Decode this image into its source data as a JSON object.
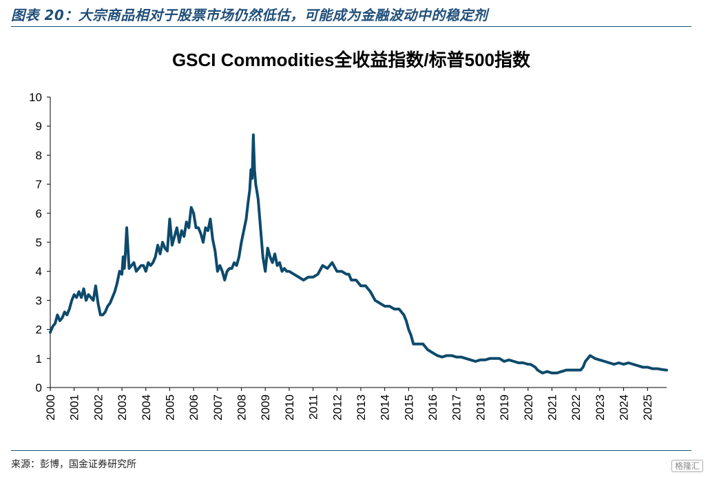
{
  "figure": {
    "title": "图表 20：大宗商品相对于股票市场仍然低估，可能成为金融波动中的稳定剂",
    "source": "来源：彭博，国金证券研究所",
    "watermark": "格隆汇"
  },
  "colors": {
    "line": "#0d4a6b",
    "accent": "#1f4e79"
  },
  "chart_data": {
    "type": "line",
    "title": "GSCI Commodities全收益指数/标普500指数",
    "xlabel": "",
    "ylabel": "",
    "xlim": [
      2000.0,
      2025.8
    ],
    "ylim": [
      0,
      10
    ],
    "yticks": [
      0,
      1,
      2,
      3,
      4,
      5,
      6,
      7,
      8,
      9,
      10
    ],
    "xticks": [
      "2000",
      "2001",
      "2002",
      "2003",
      "2004",
      "2005",
      "2006",
      "2007",
      "2008",
      "2009",
      "2010",
      "2011",
      "2012",
      "2013",
      "2014",
      "2015",
      "2016",
      "2017",
      "2018",
      "2019",
      "2020",
      "2021",
      "2022",
      "2023",
      "2024",
      "2025"
    ],
    "grid": false,
    "legend": "none",
    "series": [
      {
        "x": [
          2000.0,
          2000.1,
          2000.2,
          2000.3,
          2000.4,
          2000.5,
          2000.6,
          2000.7,
          2000.8,
          2000.9,
          2001.0,
          2001.1,
          2001.2,
          2001.3,
          2001.4,
          2001.5,
          2001.6,
          2001.7,
          2001.8,
          2001.9,
          2002.0,
          2002.1,
          2002.2,
          2002.3,
          2002.4,
          2002.5,
          2002.6,
          2002.7,
          2002.8,
          2002.9,
          2003.0,
          2003.05,
          2003.1,
          2003.15,
          2003.2,
          2003.3,
          2003.4,
          2003.5,
          2003.6,
          2003.7,
          2003.8,
          2003.9,
          2004.0,
          2004.1,
          2004.2,
          2004.3,
          2004.4,
          2004.5,
          2004.6,
          2004.7,
          2004.8,
          2004.9,
          2005.0,
          2005.1,
          2005.2,
          2005.3,
          2005.4,
          2005.5,
          2005.6,
          2005.7,
          2005.8,
          2005.9,
          2006.0,
          2006.1,
          2006.2,
          2006.3,
          2006.4,
          2006.5,
          2006.6,
          2006.7,
          2006.8,
          2006.9,
          2007.0,
          2007.1,
          2007.2,
          2007.3,
          2007.4,
          2007.5,
          2007.6,
          2007.7,
          2007.8,
          2007.9,
          2008.0,
          2008.1,
          2008.2,
          2008.3,
          2008.35,
          2008.4,
          2008.45,
          2008.5,
          2008.55,
          2008.6,
          2008.7,
          2008.8,
          2008.9,
          2009.0,
          2009.1,
          2009.2,
          2009.3,
          2009.4,
          2009.5,
          2009.6,
          2009.7,
          2009.8,
          2009.9,
          2010.0,
          2010.2,
          2010.4,
          2010.6,
          2010.8,
          2011.0,
          2011.2,
          2011.4,
          2011.6,
          2011.8,
          2012.0,
          2012.2,
          2012.4,
          2012.5,
          2012.6,
          2012.8,
          2013.0,
          2013.2,
          2013.4,
          2013.6,
          2013.8,
          2014.0,
          2014.2,
          2014.4,
          2014.5,
          2014.6,
          2014.7,
          2014.8,
          2014.9,
          2015.0,
          2015.1,
          2015.2,
          2015.4,
          2015.6,
          2015.8,
          2016.0,
          2016.2,
          2016.4,
          2016.6,
          2016.8,
          2017.0,
          2017.2,
          2017.4,
          2017.6,
          2017.8,
          2018.0,
          2018.2,
          2018.4,
          2018.6,
          2018.8,
          2019.0,
          2019.2,
          2019.4,
          2019.6,
          2019.8,
          2020.0,
          2020.1,
          2020.2,
          2020.3,
          2020.4,
          2020.6,
          2020.8,
          2021.0,
          2021.2,
          2021.4,
          2021.6,
          2021.8,
          2022.0,
          2022.2,
          2022.3,
          2022.4,
          2022.5,
          2022.6,
          2022.8,
          2023.0,
          2023.2,
          2023.4,
          2023.6,
          2023.8,
          2024.0,
          2024.2,
          2024.4,
          2024.6,
          2024.8,
          2025.0,
          2025.2,
          2025.4,
          2025.6,
          2025.8
        ],
        "y": [
          1.9,
          2.1,
          2.2,
          2.5,
          2.3,
          2.4,
          2.6,
          2.5,
          2.7,
          3.0,
          3.2,
          3.1,
          3.3,
          3.1,
          3.4,
          3.0,
          3.2,
          3.1,
          3.0,
          3.5,
          2.9,
          2.5,
          2.5,
          2.6,
          2.8,
          2.9,
          3.1,
          3.3,
          3.6,
          4.0,
          3.9,
          4.5,
          4.1,
          4.7,
          5.5,
          4.1,
          4.2,
          4.3,
          4.0,
          4.1,
          4.2,
          4.2,
          4.0,
          4.3,
          4.2,
          4.3,
          4.5,
          4.9,
          4.6,
          5.0,
          4.8,
          4.7,
          5.8,
          4.9,
          5.2,
          5.5,
          5.0,
          5.4,
          5.2,
          5.7,
          5.5,
          6.2,
          6.0,
          5.5,
          5.5,
          5.3,
          5.0,
          5.5,
          5.4,
          5.8,
          5.1,
          4.7,
          4.0,
          4.2,
          4.0,
          3.7,
          4.0,
          4.1,
          4.1,
          4.3,
          4.2,
          4.5,
          5.0,
          5.4,
          5.8,
          6.5,
          6.8,
          7.5,
          7.2,
          8.7,
          7.5,
          7.0,
          6.5,
          5.5,
          4.5,
          4.0,
          4.8,
          4.5,
          4.3,
          4.6,
          4.2,
          4.3,
          4.0,
          4.1,
          4.0,
          4.0,
          3.9,
          3.8,
          3.7,
          3.8,
          3.8,
          3.9,
          4.2,
          4.1,
          4.3,
          4.0,
          4.0,
          3.9,
          3.9,
          3.7,
          3.7,
          3.5,
          3.5,
          3.3,
          3.0,
          2.9,
          2.8,
          2.8,
          2.7,
          2.7,
          2.7,
          2.6,
          2.5,
          2.3,
          2.0,
          1.8,
          1.5,
          1.5,
          1.5,
          1.3,
          1.2,
          1.1,
          1.05,
          1.1,
          1.1,
          1.05,
          1.05,
          1.0,
          0.95,
          0.9,
          0.95,
          0.95,
          1.0,
          1.0,
          1.0,
          0.9,
          0.95,
          0.9,
          0.85,
          0.85,
          0.8,
          0.8,
          0.75,
          0.7,
          0.6,
          0.5,
          0.55,
          0.5,
          0.5,
          0.55,
          0.6,
          0.6,
          0.6,
          0.6,
          0.7,
          0.9,
          1.0,
          1.1,
          1.0,
          0.95,
          0.9,
          0.85,
          0.8,
          0.85,
          0.8,
          0.85,
          0.8,
          0.75,
          0.7,
          0.7,
          0.65,
          0.65,
          0.62,
          0.6
        ]
      }
    ]
  }
}
